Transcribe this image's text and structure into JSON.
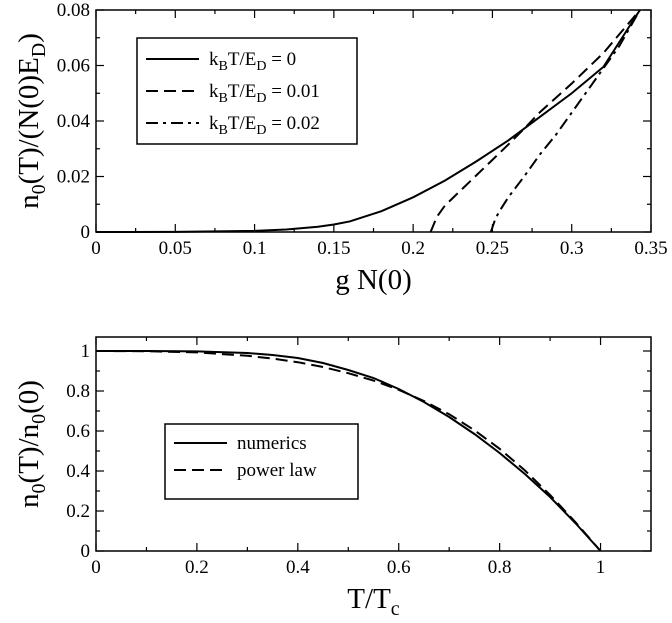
{
  "chart_data": [
    {
      "type": "line",
      "title": "",
      "xlabel": "g N(0)",
      "ylabel": "n0(T)/(N(0)ED)",
      "xlim": [
        0,
        0.35
      ],
      "ylim": [
        0,
        0.08
      ],
      "x_ticks": [
        "0",
        "0.05",
        "0.1",
        "0.15",
        "0.2",
        "0.25",
        "0.3",
        "0.35"
      ],
      "y_ticks": [
        "0",
        "0.02",
        "0.04",
        "0.06",
        "0.08"
      ],
      "legend_position": "top-left",
      "series": [
        {
          "name": "kBT/ED = 0",
          "style": "solid",
          "x": [
            0,
            0.05,
            0.1,
            0.12,
            0.14,
            0.15,
            0.16,
            0.18,
            0.2,
            0.22,
            0.24,
            0.26,
            0.28,
            0.3,
            0.32,
            0.343
          ],
          "y": [
            0,
            3e-05,
            0.0004,
            0.0009,
            0.0019,
            0.0027,
            0.0038,
            0.0075,
            0.0125,
            0.0185,
            0.0255,
            0.033,
            0.0415,
            0.05,
            0.0595,
            0.08
          ]
        },
        {
          "name": "kBT/ED = 0.01",
          "style": "dashed",
          "x": [
            0.211,
            0.215,
            0.22,
            0.23,
            0.24,
            0.25,
            0.26,
            0.27,
            0.28,
            0.3,
            0.32,
            0.343
          ],
          "y": [
            0,
            0.0055,
            0.0095,
            0.015,
            0.0205,
            0.026,
            0.0315,
            0.0372,
            0.0432,
            0.0535,
            0.0645,
            0.08
          ]
        },
        {
          "name": "kBT/ED = 0.02",
          "style": "dashdot",
          "x": [
            0.249,
            0.252,
            0.255,
            0.26,
            0.27,
            0.28,
            0.29,
            0.3,
            0.31,
            0.32,
            0.33,
            0.343
          ],
          "y": [
            0,
            0.005,
            0.008,
            0.0125,
            0.02,
            0.028,
            0.035,
            0.043,
            0.051,
            0.059,
            0.067,
            0.08
          ]
        }
      ],
      "legend": [
        {
          "main": "k",
          "sub": "B",
          "mid": "T/E",
          "sub2": "D",
          "tail": " = 0"
        },
        {
          "main": "k",
          "sub": "B",
          "mid": "T/E",
          "sub2": "D",
          "tail": " = 0.01"
        },
        {
          "main": "k",
          "sub": "B",
          "mid": "T/E",
          "sub2": "D",
          "tail": " = 0.02"
        }
      ]
    },
    {
      "type": "line",
      "title": "",
      "xlabel": "T/Tc",
      "ylabel": "n0(T)/n0(0)",
      "xlim": [
        0,
        1.1
      ],
      "ylim": [
        0,
        1.07
      ],
      "x_ticks": [
        "0",
        "0.2",
        "0.4",
        "0.6",
        "0.8",
        "1"
      ],
      "y_ticks": [
        "0",
        "0.2",
        "0.4",
        "0.6",
        "0.8",
        "1"
      ],
      "legend_position": "center-left",
      "series": [
        {
          "name": "numerics",
          "style": "solid",
          "x": [
            0,
            0.1,
            0.2,
            0.3,
            0.35,
            0.4,
            0.45,
            0.5,
            0.55,
            0.6,
            0.65,
            0.7,
            0.75,
            0.8,
            0.85,
            0.9,
            0.95,
            1.0
          ],
          "y": [
            1.0,
            1.0,
            0.998,
            0.99,
            0.98,
            0.965,
            0.94,
            0.905,
            0.865,
            0.81,
            0.745,
            0.67,
            0.585,
            0.49,
            0.385,
            0.27,
            0.14,
            0.0
          ]
        },
        {
          "name": "power law",
          "style": "dashed",
          "x": [
            0,
            0.1,
            0.2,
            0.3,
            0.35,
            0.4,
            0.45,
            0.5,
            0.55,
            0.6,
            0.65,
            0.7,
            0.75,
            0.8,
            0.85,
            0.9,
            0.95,
            1.0
          ],
          "y": [
            1.0,
            0.999,
            0.993,
            0.976,
            0.962,
            0.944,
            0.92,
            0.889,
            0.852,
            0.806,
            0.75,
            0.684,
            0.604,
            0.511,
            0.403,
            0.28,
            0.145,
            0.0
          ]
        }
      ],
      "legend": [
        {
          "main": "numerics"
        },
        {
          "main": "power law"
        }
      ]
    }
  ]
}
